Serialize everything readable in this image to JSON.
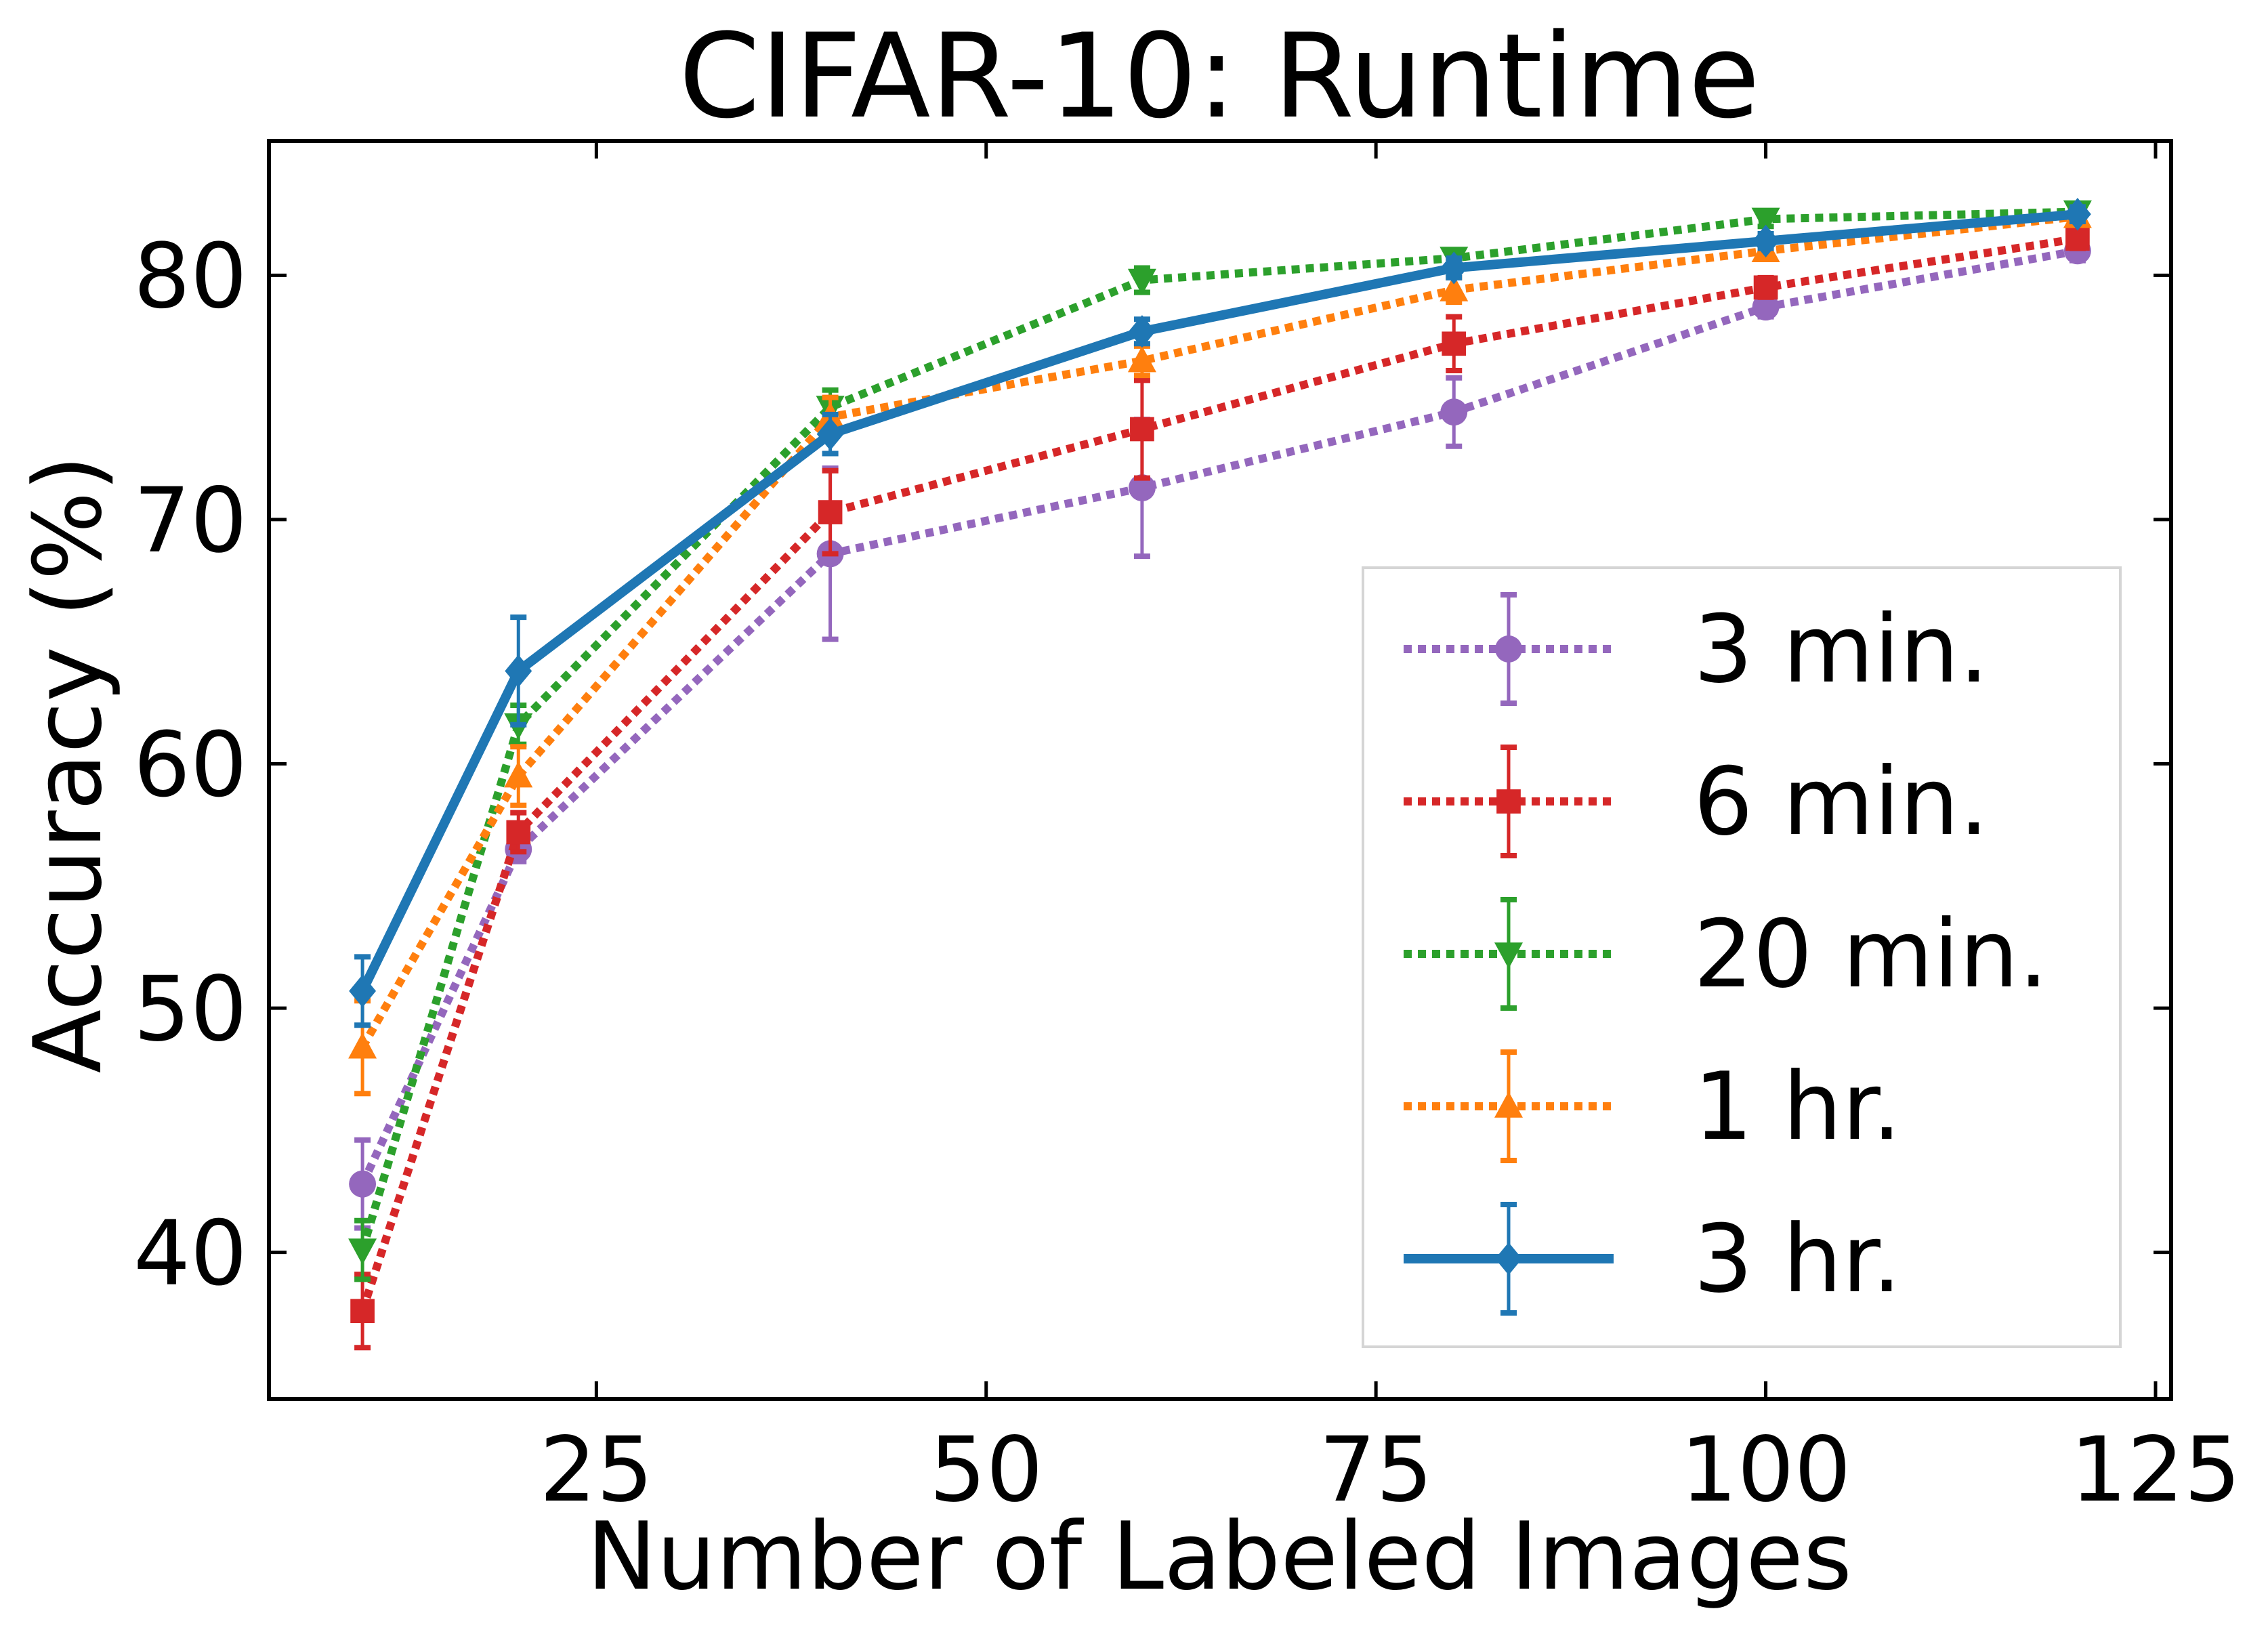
{
  "chart_data": {
    "type": "line",
    "title": "CIFAR-10: Runtime",
    "xlabel": "Number of Labeled Images",
    "ylabel": "Accuracy (%)",
    "xlim": [
      4,
      126
    ],
    "ylim": [
      34,
      85.5
    ],
    "x_ticks": [
      25,
      50,
      75,
      100,
      125
    ],
    "y_ticks": [
      40,
      50,
      60,
      70,
      80
    ],
    "grid": false,
    "legend_position": "lower-right",
    "x": [
      10,
      20,
      40,
      60,
      80,
      100,
      120
    ],
    "series": [
      {
        "name": "3 min.",
        "color": "#9467bd",
        "linestyle": "dotted",
        "marker": "circle",
        "values": [
          42.8,
          56.5,
          68.6,
          71.3,
          74.4,
          78.7,
          81.0
        ],
        "error": [
          1.8,
          0.5,
          3.5,
          2.8,
          1.4,
          0.4,
          0.4
        ]
      },
      {
        "name": "6 min.",
        "color": "#d62728",
        "linestyle": "dotted",
        "marker": "square",
        "values": [
          37.6,
          57.2,
          70.3,
          73.7,
          77.2,
          79.5,
          81.5
        ],
        "error": [
          1.5,
          0.8,
          1.7,
          2.0,
          1.1,
          0.4,
          0.4
        ]
      },
      {
        "name": "20 min.",
        "color": "#2ca02c",
        "linestyle": "dotted",
        "marker": "triangle-down",
        "values": [
          40.1,
          61.6,
          74.6,
          79.8,
          80.7,
          82.3,
          82.6
        ],
        "error": [
          1.2,
          0.8,
          0.7,
          0.5,
          0.3,
          0.3,
          0.3
        ]
      },
      {
        "name": "1 hr.",
        "color": "#ff7f0e",
        "linestyle": "dotted",
        "marker": "triangle-up",
        "values": [
          48.4,
          59.5,
          74.2,
          76.5,
          79.4,
          81.0,
          82.4
        ],
        "error": [
          1.9,
          1.2,
          0.8,
          0.6,
          0.5,
          0.3,
          0.3
        ]
      },
      {
        "name": "3 hr.",
        "color": "#1f77b4",
        "linestyle": "solid",
        "marker": "diamond",
        "values": [
          50.7,
          63.8,
          73.5,
          77.7,
          80.3,
          81.4,
          82.5
        ],
        "error": [
          1.4,
          2.2,
          0.8,
          0.5,
          0.4,
          0.3,
          0.3
        ]
      }
    ]
  }
}
